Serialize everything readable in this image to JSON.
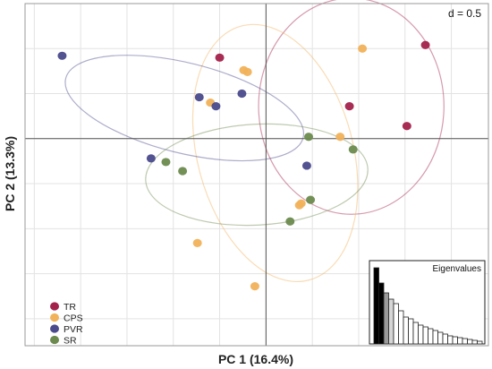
{
  "chart_data": {
    "type": "scatter",
    "title": "",
    "xlabel": "PC 1 (16.4%)",
    "ylabel": "PC 2 (13.3%)",
    "xlim": [
      -1.3,
      1.2
    ],
    "ylim": [
      -1.15,
      0.75
    ],
    "grid_step": 0.25,
    "grid": true,
    "scale_label": "d = 0.5",
    "legend_position": "bottom-left",
    "series": [
      {
        "name": "TR",
        "color": "#a3214a",
        "points": [
          [
            -0.25,
            0.45
          ],
          [
            0.86,
            0.52
          ],
          [
            0.45,
            0.18
          ],
          [
            0.76,
            0.07
          ]
        ],
        "ellipse": {
          "cx": 0.46,
          "cy": 0.18,
          "rx": 0.5,
          "ry": 0.6,
          "angle": 0
        }
      },
      {
        "name": "CPS",
        "color": "#f1b25a",
        "points": [
          [
            -0.12,
            0.38
          ],
          [
            -0.1,
            0.37
          ],
          [
            -0.3,
            0.2
          ],
          [
            0.52,
            0.5
          ],
          [
            0.4,
            0.01
          ],
          [
            0.19,
            -0.36
          ],
          [
            0.18,
            -0.37
          ],
          [
            -0.37,
            -0.58
          ],
          [
            -0.06,
            -0.82
          ]
        ],
        "ellipse": {
          "cx": 0.05,
          "cy": -0.08,
          "rx": 0.42,
          "ry": 0.73,
          "angle": 15
        }
      },
      {
        "name": "PVR",
        "color": "#4a4a8c",
        "points": [
          [
            -1.1,
            0.46
          ],
          [
            -0.36,
            0.23
          ],
          [
            -0.27,
            0.18
          ],
          [
            -0.13,
            0.25
          ],
          [
            -0.62,
            -0.11
          ],
          [
            0.22,
            -0.15
          ]
        ],
        "ellipse": {
          "cx": -0.44,
          "cy": 0.17,
          "rx": 0.66,
          "ry": 0.25,
          "angle": -14
        }
      },
      {
        "name": "SR",
        "color": "#6c8a4e",
        "points": [
          [
            0.23,
            0.01
          ],
          [
            0.47,
            -0.06
          ],
          [
            -0.54,
            -0.13
          ],
          [
            -0.45,
            -0.18
          ],
          [
            0.24,
            -0.34
          ],
          [
            0.13,
            -0.46
          ]
        ],
        "ellipse": {
          "cx": -0.05,
          "cy": -0.2,
          "rx": 0.6,
          "ry": 0.28,
          "angle": 3
        }
      }
    ],
    "eigenvalues": {
      "title": "Eigenvalues",
      "values": [
        0.85,
        0.68,
        0.57,
        0.5,
        0.45,
        0.37,
        0.3,
        0.28,
        0.24,
        0.21,
        0.19,
        0.17,
        0.15,
        0.13,
        0.11,
        0.09,
        0.08,
        0.07,
        0.06,
        0.05,
        0.04,
        0.03
      ],
      "highlighted": [
        0,
        1
      ]
    }
  }
}
